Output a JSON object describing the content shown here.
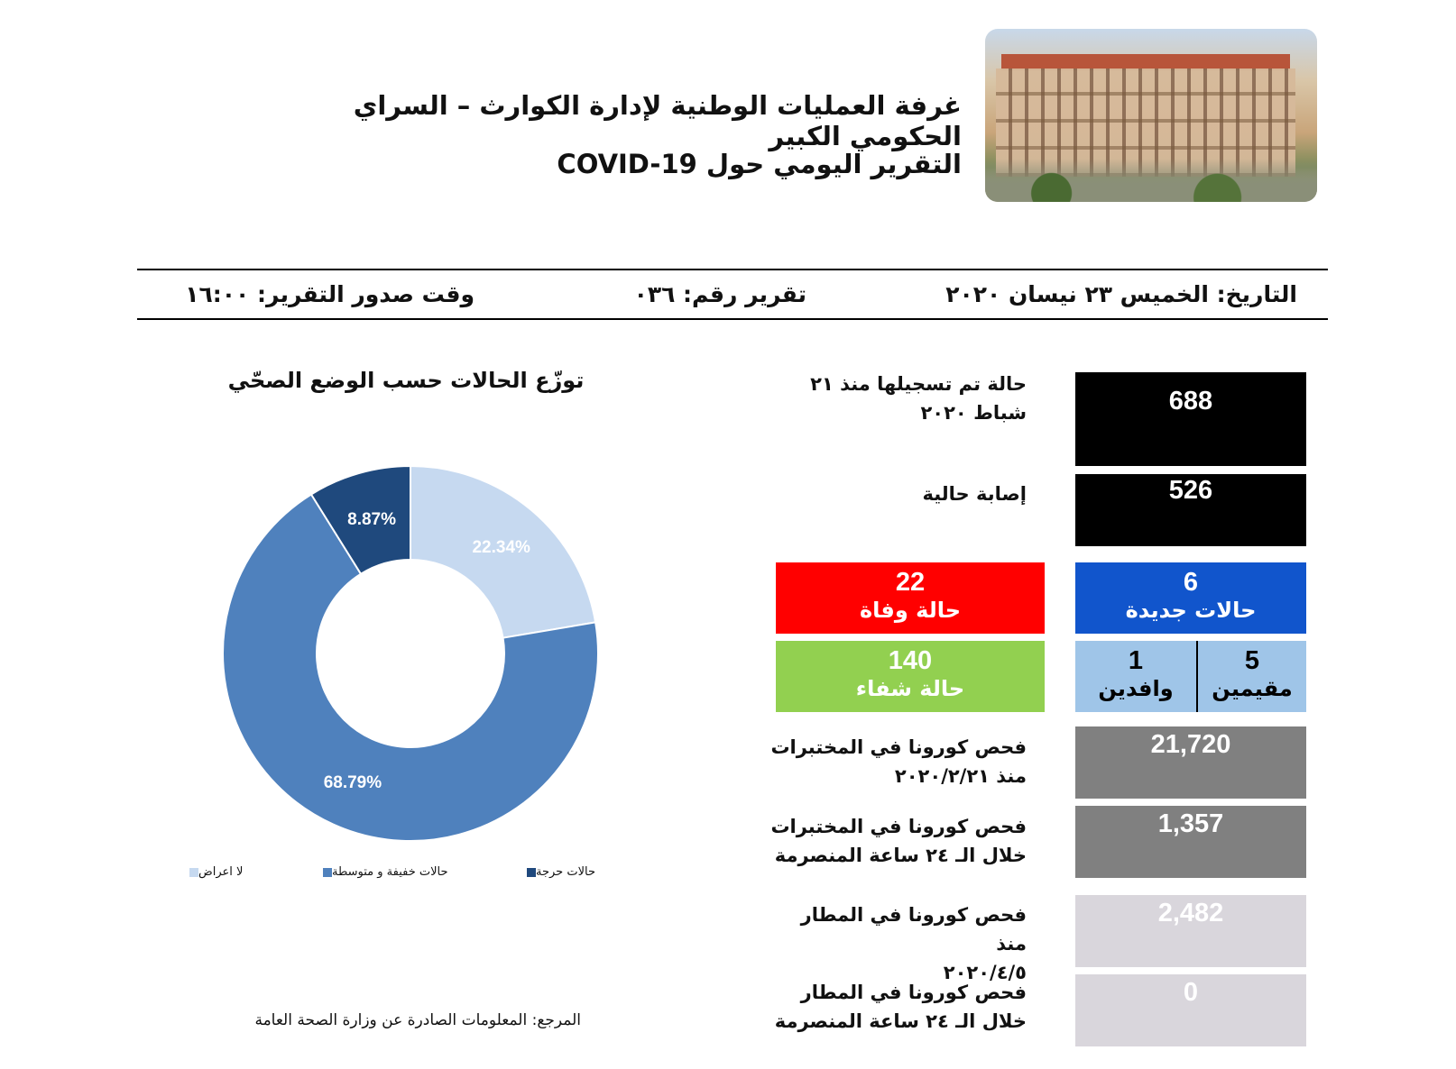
{
  "header": {
    "title_line1": "غرفة العمليات الوطنية لإدارة الكوارث – السراي الحكومي الكبير",
    "title_line2": "التقرير اليومي حول COVID-19"
  },
  "meta": {
    "date": "التاريخ: الخميس ٢٣ نيسان ٢٠٢٠",
    "report_number": "تقرير رقم: ٠٣٦",
    "issue_time": "وقت صدور التقرير: ١٦:٠٠"
  },
  "stats": {
    "total_since": {
      "label_line1": "حالة تم تسجيلها منذ ٢١",
      "label_line2": "شباط ٢٠٢٠",
      "value": "688"
    },
    "active": {
      "label": "إصابة حالية",
      "value": "526"
    },
    "new_cases": {
      "value": "6",
      "label": "حالات جديدة"
    },
    "deaths": {
      "value": "22",
      "label": "حالة وفاة"
    },
    "residents": {
      "value": "5",
      "label": "مقيمين"
    },
    "arrivals": {
      "value": "1",
      "label": "وافدين"
    },
    "recovered": {
      "value": "140",
      "label": "حالة شفاء"
    },
    "lab_tests_total": {
      "label_line1": "فحص كورونا في المختبرات",
      "label_line2": "منذ ٢٠٢٠/٢/٢١",
      "value": "21,720"
    },
    "lab_tests_24h": {
      "label_line1": "فحص كورونا في المختبرات",
      "label_line2": "خلال الـ ٢٤ ساعة المنصرمة",
      "value": "1,357"
    },
    "airport_tests_total": {
      "label_line1": "فحص كورونا في المطار منذ",
      "label_line2": "٢٠٢٠/٤/٥",
      "value": "2,482"
    },
    "airport_tests_24h": {
      "label_line1": "فحص كورونا في المطار",
      "label_line2": "خلال الـ ٢٤ ساعة المنصرمة",
      "value": "0"
    }
  },
  "colors": {
    "black_box": "#000000",
    "new_cases": "#1155cc",
    "deaths": "#ff0000",
    "recovered": "#92d050",
    "residents_arrivals": "#9fc5e8",
    "lab_tests": "#808080",
    "airport_tests": "#d9d6dc"
  },
  "chart_data": {
    "type": "pie",
    "donut": true,
    "title": "توزّع الحالات حسب الوضع الصحّي",
    "labels": [
      "لا اعراض",
      "حالات خفيفة و متوسطة",
      "حالات حرجة"
    ],
    "values": [
      22.34,
      68.79,
      8.87
    ],
    "value_labels": [
      "22.34%",
      "68.79%",
      "8.87%"
    ],
    "colors": [
      "#c6d9f0",
      "#4f81bd",
      "#1f497d"
    ],
    "legend_position": "bottom"
  },
  "footer": {
    "source": "المرجع: المعلومات الصادرة عن وزارة الصحة العامة"
  }
}
